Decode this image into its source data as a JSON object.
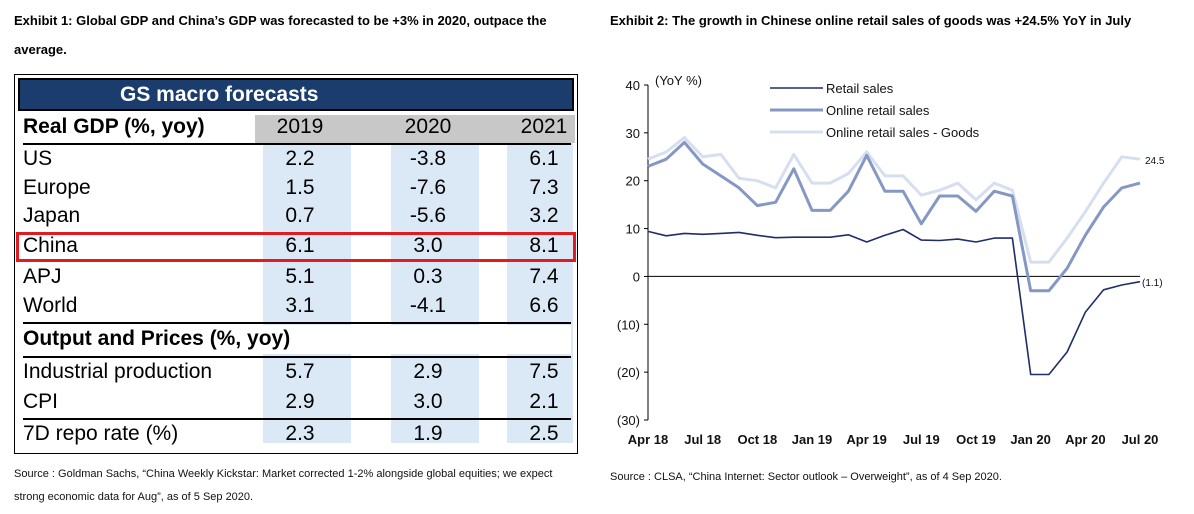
{
  "exhibit1": {
    "title": "Exhibit 1: Global GDP and China’s GDP was forecasted to be +3% in 2020, outpace the average.",
    "source": "Source : Goldman Sachs, “China Weekly Kickstar: Market corrected 1-2% alongside global equities; we expect strong economic data for Aug”, as of 5 Sep 2020.",
    "table": {
      "banner": "GS macro forecasts",
      "section1_header": "Real GDP (%, yoy)",
      "years": [
        "2019",
        "2020",
        "2021"
      ],
      "gdp_rows": [
        {
          "label": "US",
          "values": [
            "2.2",
            "-3.8",
            "6.1"
          ]
        },
        {
          "label": "Europe",
          "values": [
            "1.5",
            "-7.6",
            "7.3"
          ]
        },
        {
          "label": "Japan",
          "values": [
            "0.7",
            "-5.6",
            "3.2"
          ]
        },
        {
          "label": "China",
          "values": [
            "6.1",
            "3.0",
            "8.1"
          ]
        },
        {
          "label": "APJ",
          "values": [
            "5.1",
            "0.3",
            "7.4"
          ]
        },
        {
          "label": "World",
          "values": [
            "3.1",
            "-4.1",
            "6.6"
          ]
        }
      ],
      "section2_header": "Output and Prices (%, yoy)",
      "output_rows": [
        {
          "label": "Industrial production",
          "values": [
            "5.7",
            "2.9",
            "7.5"
          ]
        },
        {
          "label": "CPI",
          "values": [
            "2.9",
            "3.0",
            "2.1"
          ]
        }
      ],
      "repo_row": {
        "label": "7D repo rate (%)",
        "values": [
          "2.3",
          "1.9",
          "2.5"
        ]
      }
    }
  },
  "exhibit2": {
    "title": "Exhibit 2:  The growth in Chinese online retail sales of goods was +24.5% YoY in July",
    "source": "Source : CLSA, “China Internet: Sector outlook – Overweight”, as of 4 Sep 2020.",
    "chart_data": {
      "type": "line",
      "ylabel": "(YoY %)",
      "ylim": [
        -30,
        40
      ],
      "yticks": [
        "40",
        "30",
        "20",
        "10",
        "0",
        "(10)",
        "(20)",
        "(30)"
      ],
      "ytick_values": [
        40,
        30,
        20,
        10,
        0,
        -10,
        -20,
        -30
      ],
      "xtick_labels": [
        "Apr 18",
        "Jul 18",
        "Oct 18",
        "Jan 19",
        "Apr 19",
        "Jul 19",
        "Oct 19",
        "Jan 20",
        "Apr 20",
        "Jul 20"
      ],
      "xtick_index": [
        0,
        3,
        6,
        9,
        12,
        15,
        18,
        21,
        24,
        27
      ],
      "x": [
        "Apr 18",
        "May 18",
        "Jun 18",
        "Jul 18",
        "Aug 18",
        "Sep 18",
        "Oct 18",
        "Nov 18",
        "Dec 18",
        "Jan 19",
        "Feb 19",
        "Mar 19",
        "Apr 19",
        "May 19",
        "Jun 19",
        "Jul 19",
        "Aug 19",
        "Sep 19",
        "Oct 19",
        "Nov 19",
        "Dec 19",
        "Jan 20",
        "Feb 20",
        "Mar 20",
        "Apr 20",
        "May 20",
        "Jun 20",
        "Jul 20"
      ],
      "series": [
        {
          "name": "Retail sales",
          "color": "#1f2d6b",
          "values": [
            9.4,
            8.5,
            9.0,
            8.8,
            9.0,
            9.2,
            8.6,
            8.1,
            8.2,
            8.2,
            8.2,
            8.7,
            7.2,
            8.6,
            9.8,
            7.6,
            7.5,
            7.8,
            7.2,
            8.0,
            8.0,
            -20.5,
            -20.5,
            -15.8,
            -7.5,
            -2.8,
            -1.8,
            -1.1
          ]
        },
        {
          "name": "Online retail sales",
          "color": "#8598c4",
          "values": [
            23.0,
            24.5,
            28.0,
            23.5,
            21.0,
            18.5,
            14.8,
            15.5,
            22.5,
            13.8,
            13.8,
            17.8,
            25.3,
            17.8,
            17.8,
            11.0,
            16.8,
            16.8,
            13.6,
            17.8,
            16.8,
            -3.0,
            -3.0,
            1.7,
            8.6,
            14.5,
            18.5,
            19.5
          ]
        },
        {
          "name": "Online retail sales - Goods",
          "color": "#d6dff0",
          "values": [
            24.5,
            26.0,
            29.0,
            25.0,
            25.5,
            20.5,
            20.0,
            18.5,
            25.5,
            19.5,
            19.5,
            21.5,
            26.0,
            21.0,
            21.0,
            17.0,
            18.0,
            19.5,
            16.0,
            19.5,
            18.0,
            3.0,
            3.0,
            8.0,
            13.5,
            19.5,
            25.0,
            24.5
          ]
        }
      ],
      "end_labels": [
        "24.5",
        "(1.1)"
      ]
    }
  }
}
